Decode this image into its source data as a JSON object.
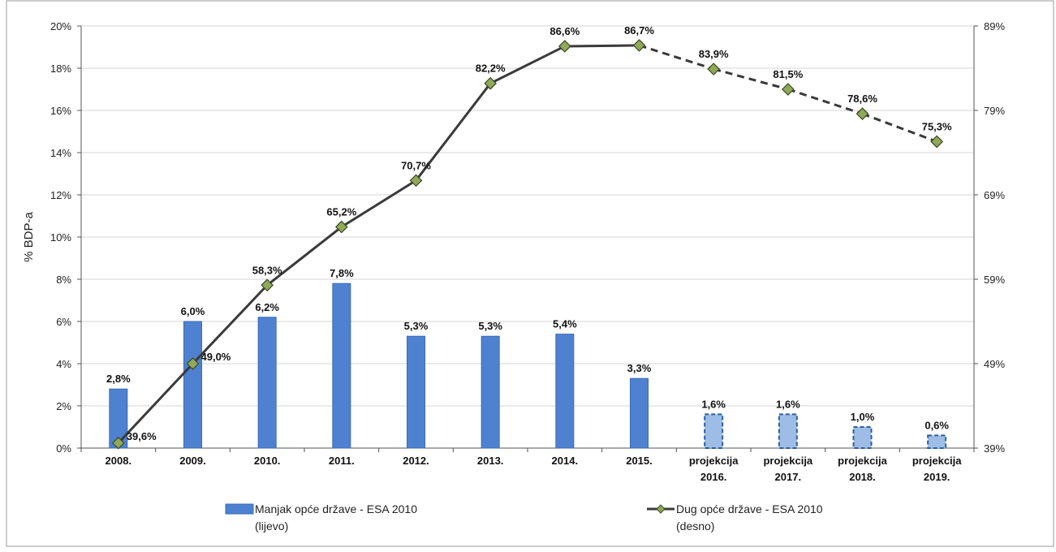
{
  "chart_data": {
    "type": "bar",
    "categories": [
      [
        "2008."
      ],
      [
        "2009."
      ],
      [
        "2010."
      ],
      [
        "2011."
      ],
      [
        "2012."
      ],
      [
        "2013."
      ],
      [
        "2014."
      ],
      [
        "2015."
      ],
      [
        "projekcija",
        "2016."
      ],
      [
        "projekcija",
        "2017."
      ],
      [
        "projekcija",
        "2018."
      ],
      [
        "projekcija",
        "2019."
      ]
    ],
    "ylabel": "% BDP-a",
    "ylim_left": [
      0,
      20
    ],
    "yticks_left": [
      "0%",
      "2%",
      "4%",
      "6%",
      "8%",
      "10%",
      "12%",
      "14%",
      "16%",
      "18%",
      "20%"
    ],
    "ylim_right": [
      39,
      89
    ],
    "yticks_right": [
      "39%",
      "49%",
      "59%",
      "69%",
      "79%",
      "89%"
    ],
    "grid": true,
    "legend_position": "bottom",
    "series": [
      {
        "name": "Manjak opće države - ESA 2010",
        "name_note": "(lijevo)",
        "axis": "left",
        "kind": "bar",
        "color": "#4f81d1",
        "projected_color": "#9dbde6",
        "projected_from_index": 8,
        "values": [
          2.8,
          6.0,
          6.2,
          7.8,
          5.3,
          5.3,
          5.4,
          3.3,
          1.6,
          1.6,
          1.0,
          0.6
        ],
        "labels": [
          "2,8%",
          "6,0%",
          "6,2%",
          "7,8%",
          "5,3%",
          "5,3%",
          "5,4%",
          "3,3%",
          "1,6%",
          "1,6%",
          "1,0%",
          "0,6%"
        ]
      },
      {
        "name": "Dug opće države - ESA 2010",
        "name_note": "(desno)",
        "axis": "right",
        "kind": "line",
        "color": "#3a3a3a",
        "marker_color": "#8fa85a",
        "dashed_from_index": 7,
        "values": [
          39.6,
          49.0,
          58.3,
          65.2,
          70.7,
          82.2,
          86.6,
          86.7,
          83.9,
          81.5,
          78.6,
          75.3
        ],
        "labels": [
          "39,6%",
          "49,0%",
          "58,3%",
          "65,2%",
          "70,7%",
          "82,2%",
          "86,6%",
          "86,7%",
          "83,9%",
          "81,5%",
          "78,6%",
          "75,3%"
        ]
      }
    ]
  }
}
